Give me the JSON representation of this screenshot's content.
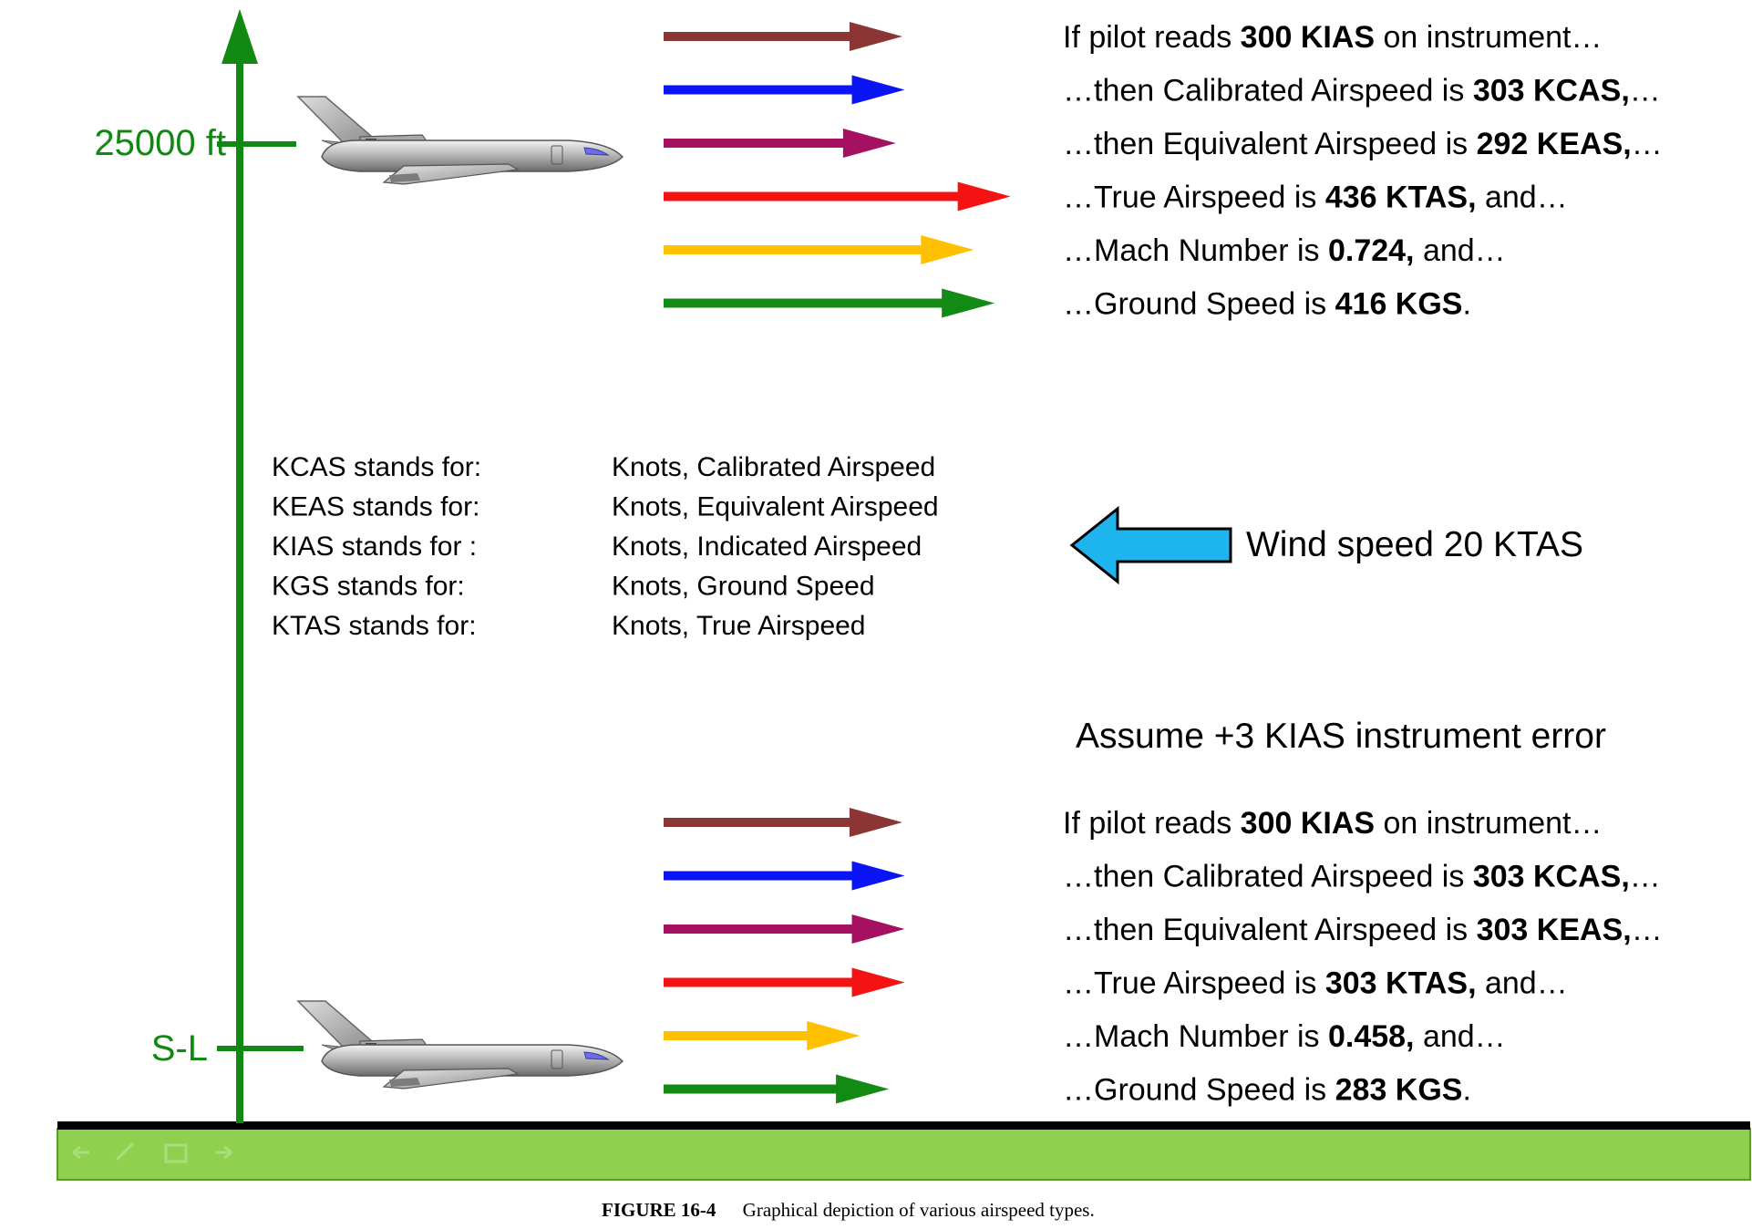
{
  "altitude_labels": {
    "top": "25000 ft",
    "bottom": "S-L"
  },
  "colors": {
    "altitude_axis": "#118811",
    "ground_bar": "#8fd14f",
    "ground_bar_border": "#5c9c2d",
    "ground_line": "#000000",
    "wind_arrow": "#1eb4ee",
    "kias": "#8b3535",
    "kcas": "#0a14f5",
    "keas": "#a61060",
    "ktas": "#f51212",
    "mach": "#ffc000",
    "kgs": "#138a13"
  },
  "upper": {
    "lines": [
      {
        "pre": "If pilot reads ",
        "bold": "300 KIAS",
        "post": " on instrument…",
        "color_key": "kias",
        "value": 300
      },
      {
        "pre": "…then Calibrated Airspeed is ",
        "bold": "303 KCAS,",
        "post": "…",
        "color_key": "kcas",
        "value": 303
      },
      {
        "pre": "…then Equivalent Airspeed is ",
        "bold": "292 KEAS,",
        "post": "…",
        "color_key": "keas",
        "value": 292
      },
      {
        "pre": "…True Airspeed is ",
        "bold": "436 KTAS,",
        "post": " and…",
        "color_key": "ktas",
        "value": 436
      },
      {
        "pre": "…Mach Number is ",
        "bold": "0.724,",
        "post": " and…",
        "color_key": "mach",
        "value": 0.724
      },
      {
        "pre": "…Ground Speed is ",
        "bold": "416 KGS",
        "post": ".",
        "color_key": "kgs",
        "value": 416
      }
    ]
  },
  "lower": {
    "lines": [
      {
        "pre": "If pilot reads ",
        "bold": "300 KIAS",
        "post": " on instrument…",
        "color_key": "kias",
        "value": 300
      },
      {
        "pre": "…then Calibrated Airspeed is ",
        "bold": "303 KCAS,",
        "post": "…",
        "color_key": "kcas",
        "value": 303
      },
      {
        "pre": "…then Equivalent Airspeed is ",
        "bold": "303 KEAS,",
        "post": "…",
        "color_key": "keas",
        "value": 303
      },
      {
        "pre": "…True Airspeed is ",
        "bold": "303 KTAS,",
        "post": " and…",
        "color_key": "ktas",
        "value": 303
      },
      {
        "pre": "…Mach Number is ",
        "bold": "0.458,",
        "post": " and…",
        "color_key": "mach",
        "value": 0.458
      },
      {
        "pre": "…Ground Speed is ",
        "bold": "283 KGS",
        "post": ".",
        "color_key": "kgs",
        "value": 283
      }
    ]
  },
  "legend": [
    {
      "term": "KCAS stands for:",
      "meaning": "Knots, Calibrated  Airspeed"
    },
    {
      "term": "KEAS stands for:",
      "meaning": "Knots, Equivalent  Airspeed"
    },
    {
      "term": "KIAS stands for :",
      "meaning": "Knots, Indicated Airspeed"
    },
    {
      "term": "KGS stands for:",
      "meaning": "Knots, Ground Speed"
    },
    {
      "term": "KTAS stands for:",
      "meaning": "Knots, True Airspeed"
    }
  ],
  "wind": {
    "label": "Wind speed 20 KTAS"
  },
  "instrument_error_note": "Assume +3 KIAS instrument error",
  "caption": {
    "figure": "FIGURE 16-4",
    "text": "Graphical depiction of various airspeed types."
  }
}
